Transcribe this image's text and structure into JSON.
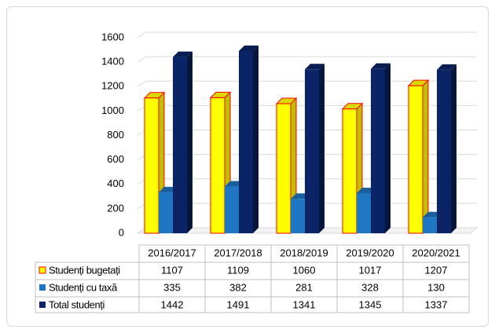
{
  "chart_data": {
    "type": "bar3d",
    "categories": [
      "2016/2017",
      "2017/2018",
      "2018/2019",
      "2019/2020",
      "2020/2021"
    ],
    "series": [
      {
        "name": "Studenți bugetați",
        "color": "#ffff00",
        "edge_color": "#ff0000",
        "values": [
          1107,
          1109,
          1060,
          1017,
          1207
        ]
      },
      {
        "name": "Studenți cu taxă",
        "color": "#1f77c4",
        "values": [
          335,
          382,
          281,
          328,
          130
        ]
      },
      {
        "name": "Total studenți",
        "color": "#0b2466",
        "values": [
          1442,
          1491,
          1341,
          1345,
          1337
        ]
      }
    ],
    "ylim": [
      0,
      1600
    ],
    "yticks": [
      0,
      200,
      400,
      600,
      800,
      1000,
      1200,
      1400,
      1600
    ],
    "grid": true,
    "data_table": true
  }
}
